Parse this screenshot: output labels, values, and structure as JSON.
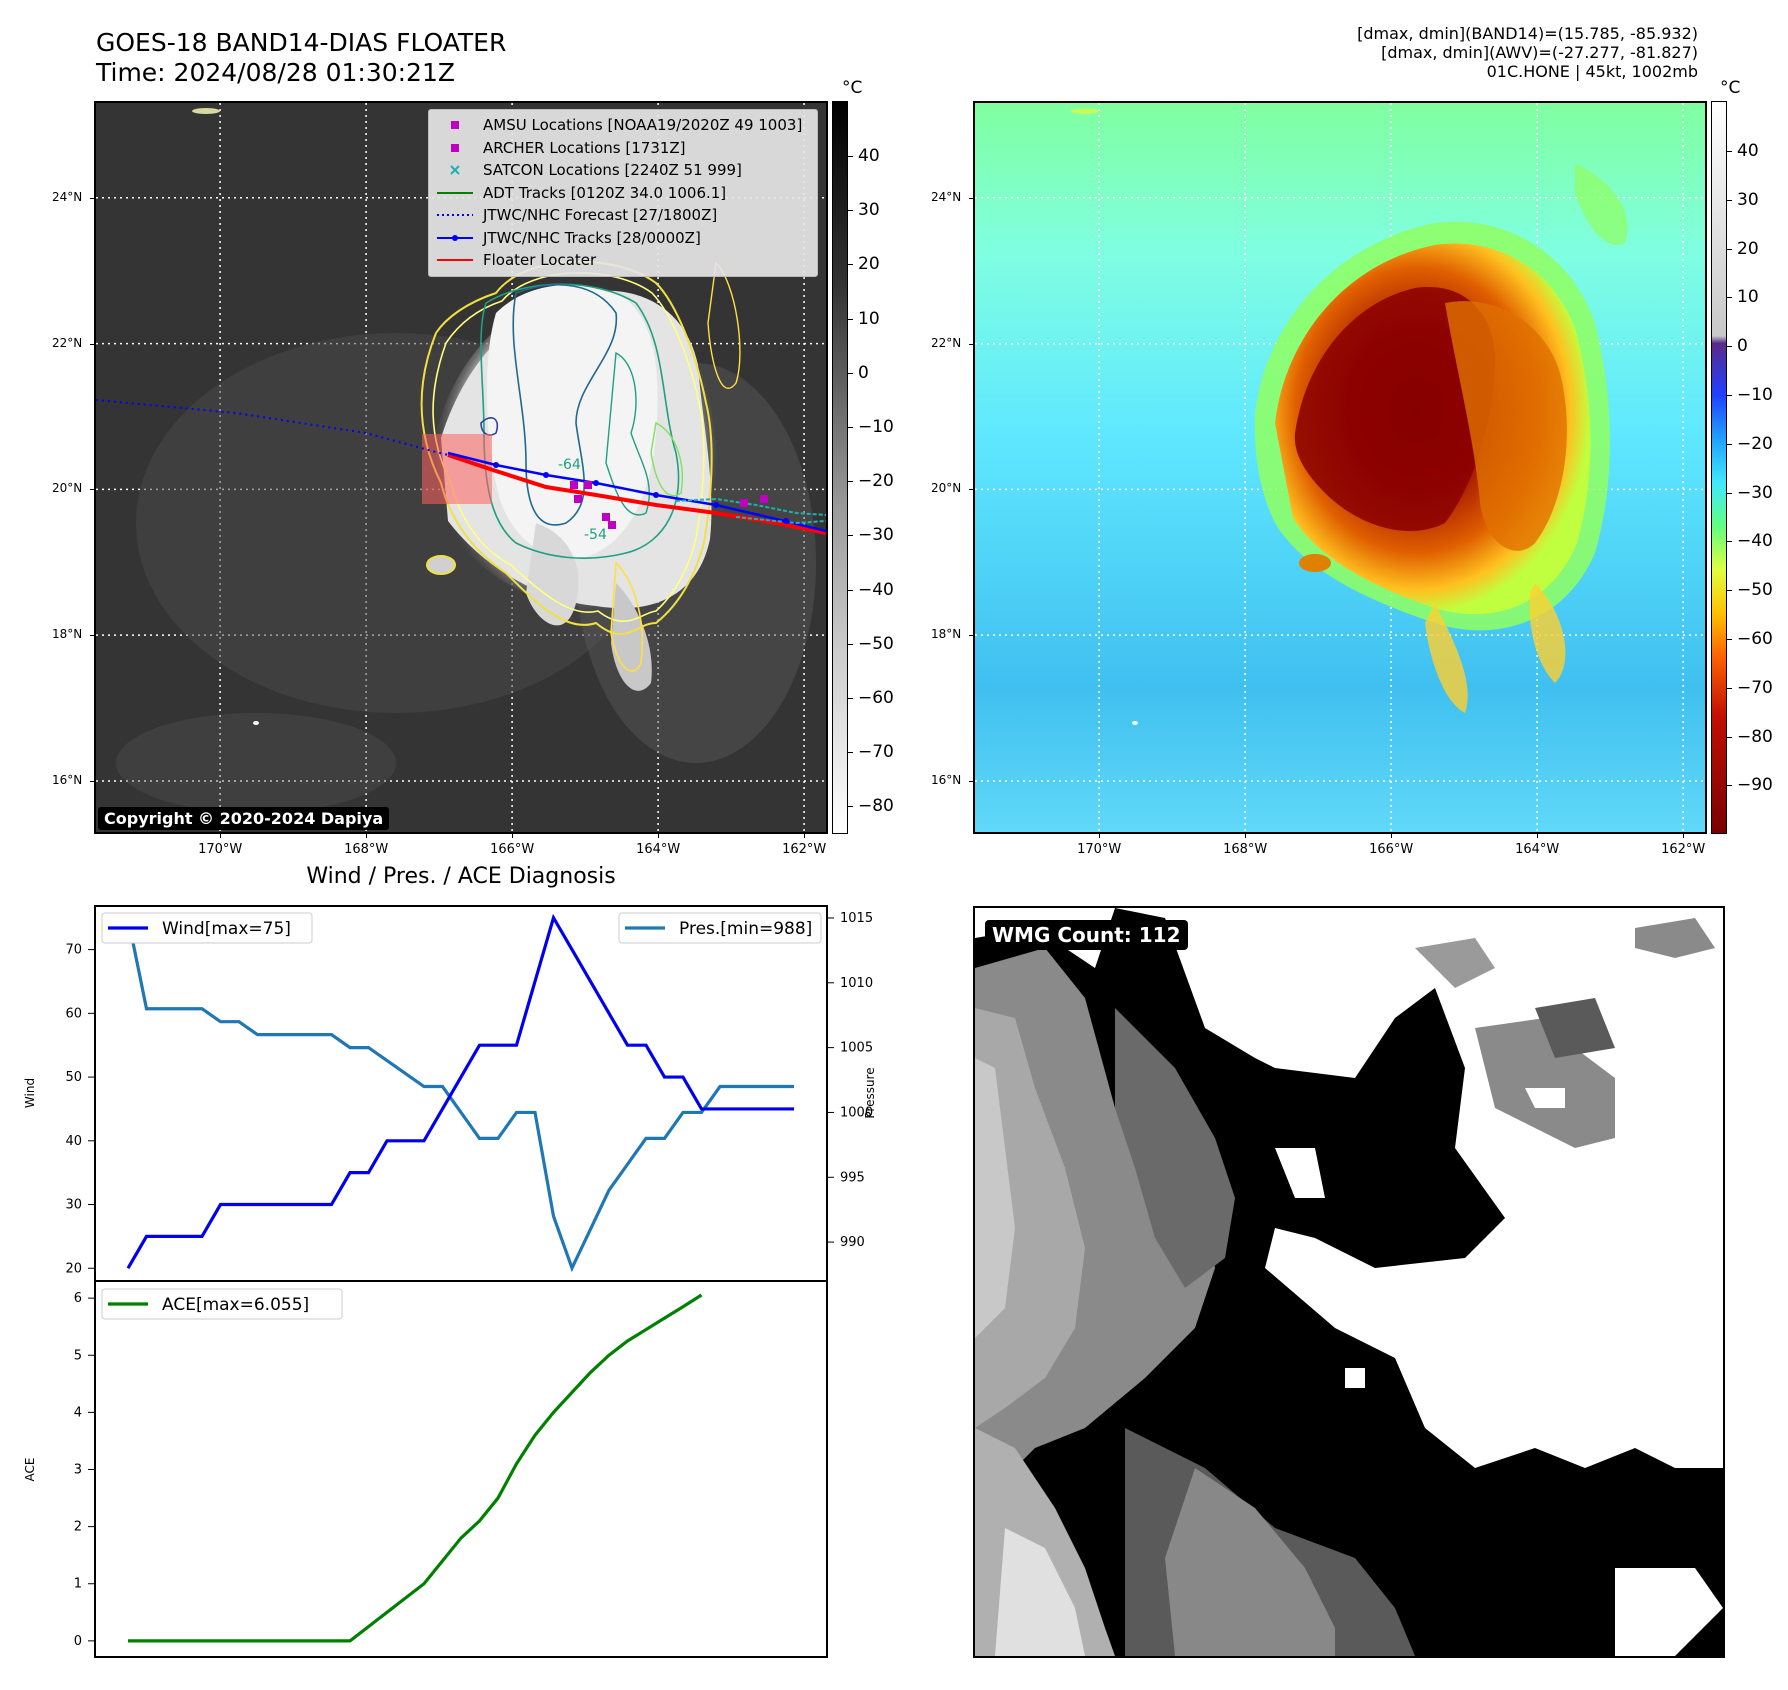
{
  "header": {
    "title_line1": "GOES-18 BAND14-DIAS FLOATER",
    "title_line2": "Time: 2024/08/28 01:30:21Z",
    "info_line1": "[dmax, dmin](BAND14)=(15.785, -85.932)",
    "info_line2": "[dmax, dmin](AWV)=(-27.277, -81.827)",
    "info_line3": "01C.HONE | 45kt, 1002mb"
  },
  "map": {
    "lat_ticks": [
      "24°N",
      "22°N",
      "20°N",
      "18°N",
      "16°N"
    ],
    "lon_ticks": [
      "170°W",
      "168°W",
      "166°W",
      "164°W",
      "162°W"
    ],
    "lat_values": [
      24,
      22,
      20,
      18,
      16
    ],
    "lon_values": [
      -170,
      -168,
      -166,
      -164,
      -162
    ],
    "lon_range": [
      -171.7,
      -161.7
    ],
    "lat_range": [
      15.3,
      25.3
    ],
    "copyright": "Copyright © 2020-2024 Dapiya",
    "contour_labels": [
      "-64",
      "-54"
    ],
    "legend": [
      {
        "label": "AMSU Locations [NOAA19/2020Z 49 1003]",
        "color": "#c000c0",
        "marker": "square"
      },
      {
        "label": "ARCHER Locations [1731Z]",
        "color": "#c000c0",
        "marker": "square"
      },
      {
        "label": "SATCON Locations [2240Z 51 999]",
        "color": "#20b0b0",
        "marker": "x"
      },
      {
        "label": "ADT Tracks [0120Z 34.0 1006.1]",
        "color": "#008000",
        "marker": "line"
      },
      {
        "label": "JTWC/NHC Forecast [27/1800Z]",
        "color": "#0000ff",
        "marker": "dotted"
      },
      {
        "label": "JTWC/NHC Tracks [28/0000Z]",
        "color": "#0000ff",
        "marker": "line-dot"
      },
      {
        "label": "Floater Locater",
        "color": "#ff0000",
        "marker": "line"
      }
    ]
  },
  "colorbar_gray": {
    "unit": "°C",
    "ticks": [
      "40",
      "30",
      "20",
      "10",
      "0",
      "−10",
      "−20",
      "−30",
      "−40",
      "−50",
      "−60",
      "−70",
      "−80"
    ]
  },
  "colorbar_color": {
    "unit": "°C",
    "ticks": [
      "40",
      "30",
      "20",
      "10",
      "0",
      "−10",
      "−20",
      "−30",
      "−40",
      "−50",
      "−60",
      "−70",
      "−80",
      "−90"
    ]
  },
  "diag": {
    "title": "Wind / Pres. / ACE Diagnosis",
    "wind_ylabel": "Wind",
    "pres_ylabel": "Pressure",
    "ace_ylabel": "ACE",
    "wind_legend": "Wind[max=75]",
    "pres_legend": "Pres.[min=988]",
    "ace_legend": "ACE[max=6.055]",
    "wind_ticks": [
      "70",
      "60",
      "50",
      "40",
      "30",
      "20"
    ],
    "pres_ticks": [
      "1015",
      "1010",
      "1005",
      "1000",
      "995",
      "990"
    ],
    "ace_ticks": [
      "6",
      "5",
      "4",
      "3",
      "2",
      "1",
      "0"
    ]
  },
  "wmg": {
    "label": "WMG Count: 112"
  },
  "chart_data": [
    {
      "type": "line",
      "title": "Wind / Pres. / ACE Diagnosis",
      "x_index": [
        0,
        1,
        2,
        3,
        4,
        5,
        6,
        7,
        8,
        9,
        10,
        11,
        12,
        13,
        14,
        15,
        16,
        17,
        18,
        19,
        20,
        21,
        22,
        23,
        24,
        25,
        26,
        27,
        28,
        29,
        30,
        31,
        32,
        33,
        34,
        35,
        36
      ],
      "series": [
        {
          "name": "Wind[max=75]",
          "axis": "left",
          "ylim": [
            18,
            77
          ],
          "values": [
            20,
            25,
            25,
            25,
            25,
            30,
            30,
            30,
            30,
            30,
            30,
            30,
            35,
            35,
            40,
            40,
            40,
            45,
            50,
            55,
            55,
            55,
            65,
            75,
            70,
            65,
            60,
            55,
            55,
            50,
            50,
            45,
            45,
            45,
            45,
            45,
            45
          ]
        },
        {
          "name": "Pres.[min=988]",
          "axis": "right",
          "ylim": [
            987,
            1016
          ],
          "values": [
            1015,
            1008,
            1008,
            1008,
            1008,
            1007,
            1007,
            1006,
            1006,
            1006,
            1006,
            1006,
            1005,
            1005,
            1004,
            1003,
            1002,
            1002,
            1000,
            998,
            998,
            1000,
            1000,
            992,
            988,
            991,
            994,
            996,
            998,
            998,
            1000,
            1000,
            1002,
            1002,
            1002,
            1002,
            1002
          ]
        },
        {
          "name": "ACE[max=6.055]",
          "axis": "ace",
          "ylim": [
            -0.3,
            6.3
          ],
          "values": [
            0,
            0,
            0,
            0,
            0,
            0,
            0,
            0,
            0,
            0,
            0,
            0,
            0,
            0.25,
            0.5,
            0.75,
            1.0,
            1.4,
            1.8,
            2.1,
            2.5,
            3.1,
            3.6,
            4.0,
            4.35,
            4.7,
            5.0,
            5.25,
            5.45,
            5.65,
            5.85,
            6.055
          ]
        }
      ],
      "xlabel": "",
      "ylabel": "Wind"
    }
  ]
}
